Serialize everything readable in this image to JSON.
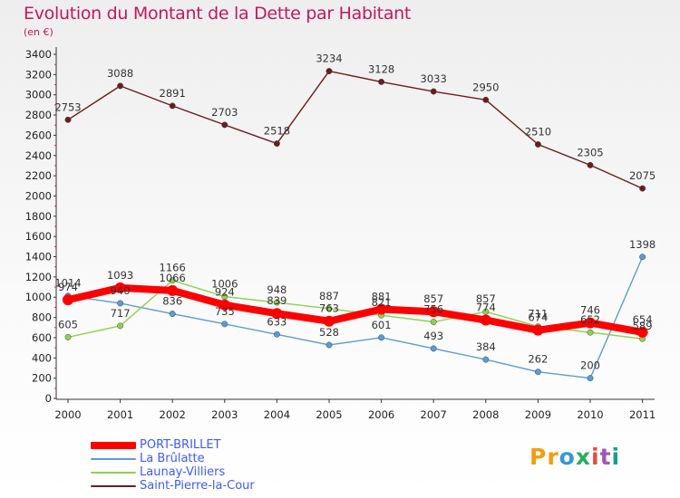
{
  "chart_data": {
    "type": "line",
    "title": "Evolution du Montant de la Dette par Habitant",
    "subtitle": "(en €)",
    "xlabel": "",
    "ylabel": "",
    "categories": [
      "2000",
      "2001",
      "2002",
      "2003",
      "2004",
      "2005",
      "2006",
      "2007",
      "2008",
      "2009",
      "2010",
      "2011"
    ],
    "ylim": [
      0,
      3400
    ],
    "yticks": [
      "0",
      "200",
      "400",
      "600",
      "800",
      "1000",
      "1200",
      "1400",
      "1600",
      "1800",
      "2000",
      "2200",
      "2400",
      "2600",
      "2800",
      "3000",
      "3200",
      "3400"
    ],
    "grid": false,
    "legend_position": "bottom-left",
    "series": [
      {
        "name": "PORT-BRILLET",
        "color": "#ff0000",
        "values": [
          974,
          1093,
          1066,
          924,
          839,
          763,
          881,
          857,
          774,
          674,
          746,
          654
        ]
      },
      {
        "name": "La Brûlatte",
        "color": "#5b9bd5",
        "values": [
          1014,
          940,
          836,
          735,
          633,
          528,
          601,
          493,
          384,
          262,
          200,
          1398
        ]
      },
      {
        "name": "Launay-Villiers",
        "color": "#8fd14f",
        "values": [
          605,
          717,
          1166,
          1006,
          948,
          887,
          821,
          756,
          857,
          711,
          652,
          589
        ]
      },
      {
        "name": "Saint-Pierre-la-Cour",
        "color": "#6d1b1b",
        "values": [
          2753,
          3088,
          2891,
          2703,
          2518,
          3234,
          3128,
          3033,
          2950,
          2510,
          2305,
          2075
        ]
      }
    ]
  },
  "brand": {
    "p1": "Pr",
    "p2": "o",
    "p3": "x",
    "p4": "i",
    "p5": "t",
    "p6": "i"
  }
}
